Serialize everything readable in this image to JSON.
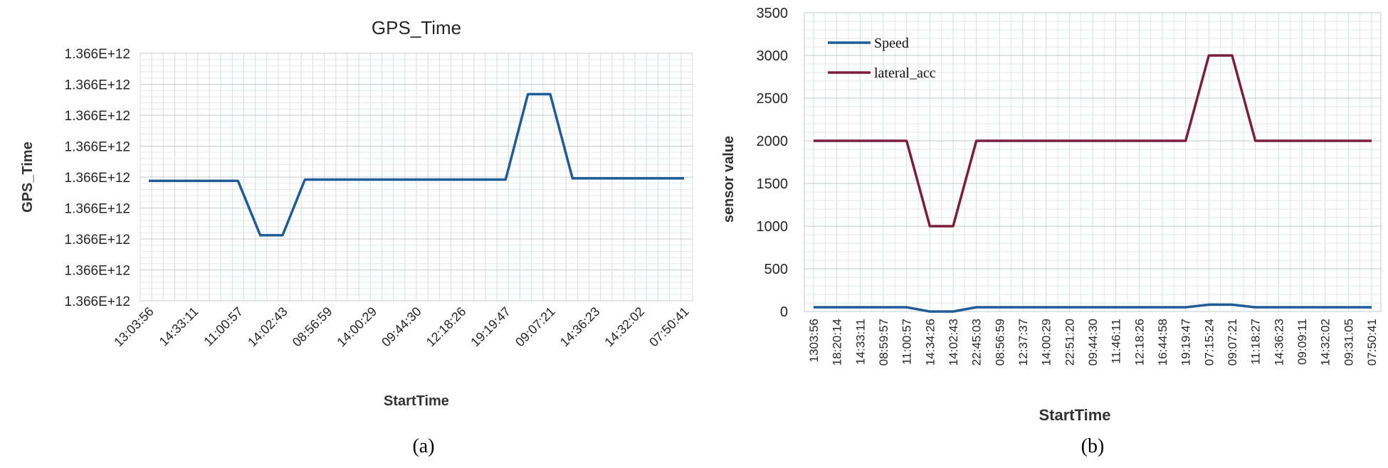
{
  "chart_data": [
    {
      "type": "line",
      "title": "GPS_Time",
      "xlabel": "StartTime",
      "ylabel": "GPS_Time",
      "caption": "(a)",
      "y_tick_labels": [
        "1.366E+12",
        "1.366E+12",
        "1.366E+12",
        "1.366E+12",
        "1.366E+12",
        "1.366E+12",
        "1.366E+12",
        "1.366E+12",
        "1.366E+12"
      ],
      "x_tick_labels": [
        "13:03:56",
        "14:33:11",
        "11:00:57",
        "14:02:43",
        "08:56:59",
        "14:00:29",
        "09:44:30",
        "12:18:26",
        "19:19:47",
        "09:07:21",
        "14:36:23",
        "14:32:02",
        "07:50:41"
      ],
      "grid": true,
      "legend": "none",
      "series": [
        {
          "color": "#1f5c99",
          "x": [
            0,
            4,
            5,
            6,
            7,
            16,
            17,
            18,
            19,
            24
          ],
          "y_relative": [
            0.485,
            0.485,
            0.265,
            0.265,
            0.49,
            0.49,
            0.835,
            0.835,
            0.495,
            0.495
          ]
        }
      ]
    },
    {
      "type": "line",
      "title": "",
      "xlabel": "StartTime",
      "ylabel": "sensor value",
      "caption": "(b)",
      "ylim": [
        0,
        3500
      ],
      "y_ticks": [
        0,
        500,
        1000,
        1500,
        2000,
        2500,
        3000,
        3500
      ],
      "x_tick_labels": [
        "1303:56",
        "18:20:14",
        "14:33:11",
        "08:59:57",
        "11:00:57",
        "14:34:26",
        "14:02:43",
        "22:45:03",
        "08:56:59",
        "12:37:37",
        "14:00:29",
        "22:51:20",
        "09:44:30",
        "11:46:11",
        "12:18:26",
        "16:44:58",
        "19:19:47",
        "07:15:24",
        "09:07:21",
        "11:18:27",
        "14:36:23",
        "09:09:11",
        "14:32:02",
        "09:31:05",
        "07:50:41"
      ],
      "grid": true,
      "legend": "top-left",
      "series": [
        {
          "name": "Speed",
          "color": "#1f5c99",
          "x": [
            0,
            4,
            5,
            6,
            7,
            16,
            17,
            18,
            19,
            24
          ],
          "y": [
            50,
            50,
            0,
            0,
            50,
            50,
            80,
            80,
            50,
            50
          ]
        },
        {
          "name": "lateral_acc",
          "color": "#7b1f3a",
          "x": [
            0,
            4,
            5,
            6,
            7,
            16,
            17,
            18,
            19,
            24
          ],
          "y": [
            2000,
            2000,
            1000,
            1000,
            2000,
            2000,
            3000,
            3000,
            2000,
            2000
          ]
        }
      ]
    }
  ]
}
